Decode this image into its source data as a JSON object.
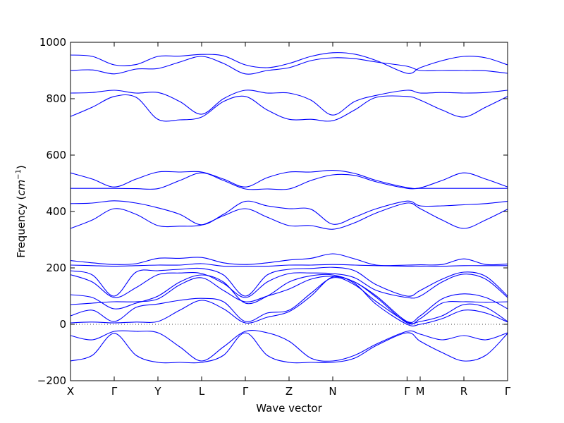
{
  "chart_data": {
    "type": "line",
    "title": "",
    "xlabel": "Wave vector",
    "ylabel_prefix": "Frequency (",
    "ylabel_unit": "cm",
    "ylabel_exp": "−1",
    "ylabel_suffix": ")",
    "ylim": [
      -200,
      1000
    ],
    "yticks": [
      "−200",
      "0",
      "200",
      "400",
      "600",
      "800",
      "1000"
    ],
    "ytick_values": [
      -200,
      0,
      200,
      400,
      600,
      800,
      1000
    ],
    "xlim": [
      0,
      10
    ],
    "high_symmetry_labels": [
      "X",
      "Γ",
      "Y",
      "L",
      "Γ",
      "Z",
      "N",
      "Γ",
      "M",
      "R",
      "Γ"
    ],
    "high_symmetry_x": [
      0,
      1,
      2,
      3,
      4,
      5,
      6,
      7.7,
      8,
      9,
      10
    ],
    "zero_line": true,
    "line_color": "#0000ff",
    "series": [
      {
        "x": [
          0,
          0.5,
          1,
          1.5,
          2,
          2.5,
          3,
          3.5,
          4,
          4.5,
          5,
          5.5,
          6,
          6.5,
          7,
          7.7,
          8,
          8.5,
          9,
          9.5,
          10
        ],
        "values": [
          955,
          950,
          920,
          921,
          950,
          951,
          957,
          952,
          920,
          910,
          925,
          950,
          963,
          958,
          935,
          890,
          910,
          935,
          950,
          945,
          920
        ]
      },
      {
        "x": [
          0,
          0.5,
          1,
          1.5,
          2,
          2.5,
          3,
          3.5,
          4,
          4.5,
          5,
          5.5,
          6,
          6.5,
          7,
          7.7,
          8,
          8.5,
          9,
          9.5,
          10
        ],
        "values": [
          900,
          902,
          888,
          905,
          907,
          930,
          950,
          925,
          888,
          900,
          910,
          935,
          945,
          942,
          930,
          915,
          900,
          900,
          900,
          899,
          890
        ]
      },
      {
        "x": [
          0,
          0.5,
          1,
          1.5,
          2,
          2.5,
          3,
          3.5,
          4,
          4.5,
          5,
          5.5,
          6,
          6.5,
          7,
          7.7,
          8,
          8.5,
          9,
          9.5,
          10
        ],
        "values": [
          820,
          822,
          830,
          820,
          822,
          790,
          745,
          800,
          830,
          820,
          820,
          795,
          742,
          790,
          812,
          830,
          820,
          822,
          820,
          822,
          830
        ]
      },
      {
        "x": [
          0,
          0.5,
          1,
          1.5,
          2,
          2.5,
          3,
          3.5,
          4,
          4.5,
          5,
          5.5,
          6,
          6.5,
          7,
          7.7,
          8,
          8.5,
          9,
          9.5,
          10
        ],
        "values": [
          737,
          770,
          808,
          805,
          727,
          725,
          735,
          790,
          808,
          760,
          727,
          727,
          722,
          760,
          805,
          808,
          795,
          760,
          735,
          770,
          808
        ]
      },
      {
        "x": [
          0,
          0.5,
          1,
          1.5,
          2,
          2.5,
          3,
          3.5,
          4,
          4.5,
          5,
          5.5,
          6,
          6.5,
          7,
          7.7,
          8,
          8.5,
          9,
          9.5,
          10
        ],
        "values": [
          537,
          515,
          487,
          515,
          540,
          540,
          540,
          515,
          487,
          520,
          540,
          540,
          546,
          535,
          510,
          485,
          484,
          510,
          537,
          515,
          487
        ]
      },
      {
        "x": [
          0,
          0.5,
          1,
          1.5,
          2,
          2.5,
          3,
          3.5,
          4,
          4.5,
          5,
          5.5,
          6,
          6.5,
          7,
          7.7,
          8,
          8.5,
          9,
          9.5,
          10
        ],
        "values": [
          482,
          482,
          482,
          481,
          481,
          510,
          537,
          510,
          480,
          480,
          480,
          510,
          530,
          528,
          505,
          482,
          482,
          482,
          482,
          482,
          482
        ]
      },
      {
        "x": [
          0,
          0.5,
          1,
          1.5,
          2,
          2.5,
          3,
          3.5,
          4,
          4.5,
          5,
          5.5,
          6,
          6.5,
          7,
          7.7,
          8,
          8.5,
          9,
          9.5,
          10
        ],
        "values": [
          428,
          430,
          438,
          430,
          413,
          390,
          353,
          390,
          436,
          420,
          410,
          408,
          355,
          380,
          410,
          437,
          420,
          420,
          424,
          428,
          436
        ]
      },
      {
        "x": [
          0,
          0.5,
          1,
          1.5,
          2,
          2.5,
          3,
          3.5,
          4,
          4.5,
          5,
          5.5,
          6,
          6.5,
          7,
          7.7,
          8,
          8.5,
          9,
          9.5,
          10
        ],
        "values": [
          340,
          370,
          410,
          390,
          350,
          348,
          352,
          385,
          410,
          380,
          350,
          350,
          337,
          360,
          395,
          430,
          410,
          370,
          340,
          370,
          408
        ]
      },
      {
        "x": [
          0,
          0.5,
          1,
          1.5,
          2,
          2.5,
          3,
          3.5,
          4,
          4.5,
          5,
          5.5,
          6,
          6.5,
          7,
          7.7,
          8,
          8.5,
          9,
          9.5,
          10
        ],
        "values": [
          226,
          218,
          212,
          215,
          234,
          234,
          237,
          218,
          212,
          218,
          228,
          234,
          250,
          232,
          210,
          210,
          211,
          212,
          232,
          212,
          214
        ]
      },
      {
        "x": [
          0,
          0.5,
          1,
          1.5,
          2,
          2.5,
          3,
          3.5,
          4,
          4.5,
          5,
          5.5,
          6,
          6.5,
          7,
          7.7,
          8,
          8.5,
          9,
          9.5,
          10
        ],
        "values": [
          210,
          208,
          206,
          208,
          210,
          210,
          215,
          206,
          206,
          206,
          210,
          210,
          212,
          210,
          208,
          206,
          206,
          206,
          208,
          208,
          208
        ]
      },
      {
        "x": [
          0,
          0.5,
          1,
          1.5,
          2,
          2.5,
          3,
          3.5,
          4,
          4.5,
          5,
          5.5,
          6,
          6.5,
          7,
          7.7,
          8,
          8.5,
          9,
          9.5,
          10
        ],
        "values": [
          190,
          175,
          100,
          185,
          190,
          195,
          198,
          175,
          100,
          175,
          195,
          198,
          202,
          190,
          140,
          100,
          120,
          160,
          185,
          170,
          100
        ]
      },
      {
        "x": [
          0,
          0.5,
          1,
          1.5,
          2,
          2.5,
          3,
          3.5,
          4,
          4.5,
          5,
          5.5,
          6,
          6.5,
          7,
          7.7,
          8,
          8.5,
          9,
          9.5,
          10
        ],
        "values": [
          176,
          150,
          95,
          130,
          176,
          182,
          180,
          145,
          95,
          150,
          180,
          182,
          180,
          165,
          120,
          95,
          100,
          150,
          178,
          160,
          95
        ]
      },
      {
        "x": [
          0,
          0.5,
          1,
          1.5,
          2,
          2.5,
          3,
          3.5,
          4,
          4.5,
          5,
          5.5,
          6,
          6.5,
          7,
          7.7,
          8,
          8.5,
          9,
          9.5,
          10
        ],
        "values": [
          105,
          95,
          55,
          75,
          100,
          150,
          175,
          150,
          75,
          100,
          150,
          172,
          175,
          150,
          100,
          10,
          30,
          90,
          108,
          95,
          55
        ]
      },
      {
        "x": [
          0,
          0.5,
          1,
          1.5,
          2,
          2.5,
          3,
          3.5,
          4,
          4.5,
          5,
          5.5,
          6,
          6.5,
          7,
          7.7,
          8,
          8.5,
          9,
          9.5,
          10
        ],
        "values": [
          70,
          75,
          80,
          80,
          90,
          140,
          165,
          120,
          80,
          100,
          125,
          160,
          170,
          150,
          95,
          5,
          20,
          75,
          80,
          78,
          80
        ]
      },
      {
        "x": [
          0,
          0.5,
          1,
          1.5,
          2,
          2.5,
          3,
          3.5,
          4,
          4.5,
          5,
          5.5,
          6,
          6.5,
          7,
          7.7,
          8,
          8.5,
          9,
          9.5,
          10
        ],
        "values": [
          30,
          50,
          10,
          60,
          72,
          85,
          92,
          80,
          10,
          40,
          50,
          110,
          165,
          140,
          80,
          8,
          10,
          30,
          70,
          60,
          10
        ]
      },
      {
        "x": [
          0,
          0.5,
          1,
          1.5,
          2,
          2.5,
          3,
          3.5,
          4,
          4.5,
          5,
          5.5,
          6,
          6.5,
          7,
          7.7,
          8,
          8.5,
          9,
          9.5,
          10
        ],
        "values": [
          5,
          8,
          5,
          8,
          10,
          50,
          85,
          55,
          5,
          25,
          45,
          100,
          168,
          145,
          70,
          0,
          0,
          20,
          50,
          40,
          8
        ]
      },
      {
        "x": [
          0,
          0.5,
          1,
          1.5,
          2,
          2.5,
          3,
          3.5,
          4,
          4.5,
          5,
          5.5,
          6,
          6.5,
          7,
          7.7,
          8,
          8.5,
          9,
          9.5,
          10
        ],
        "values": [
          -40,
          -55,
          -25,
          -25,
          -30,
          -80,
          -130,
          -80,
          -25,
          -30,
          -60,
          -120,
          -130,
          -110,
          -70,
          -25,
          -35,
          -55,
          -40,
          -55,
          -30
        ]
      },
      {
        "x": [
          0,
          0.5,
          1,
          1.5,
          2,
          2.5,
          3,
          3.5,
          4,
          4.5,
          5,
          5.5,
          6,
          6.5,
          7,
          7.7,
          8,
          8.5,
          9,
          9.5,
          10
        ],
        "values": [
          -130,
          -110,
          -32,
          -110,
          -135,
          -135,
          -135,
          -110,
          -30,
          -110,
          -135,
          -135,
          -135,
          -120,
          -75,
          -30,
          -60,
          -100,
          -130,
          -110,
          -32
        ]
      }
    ]
  }
}
